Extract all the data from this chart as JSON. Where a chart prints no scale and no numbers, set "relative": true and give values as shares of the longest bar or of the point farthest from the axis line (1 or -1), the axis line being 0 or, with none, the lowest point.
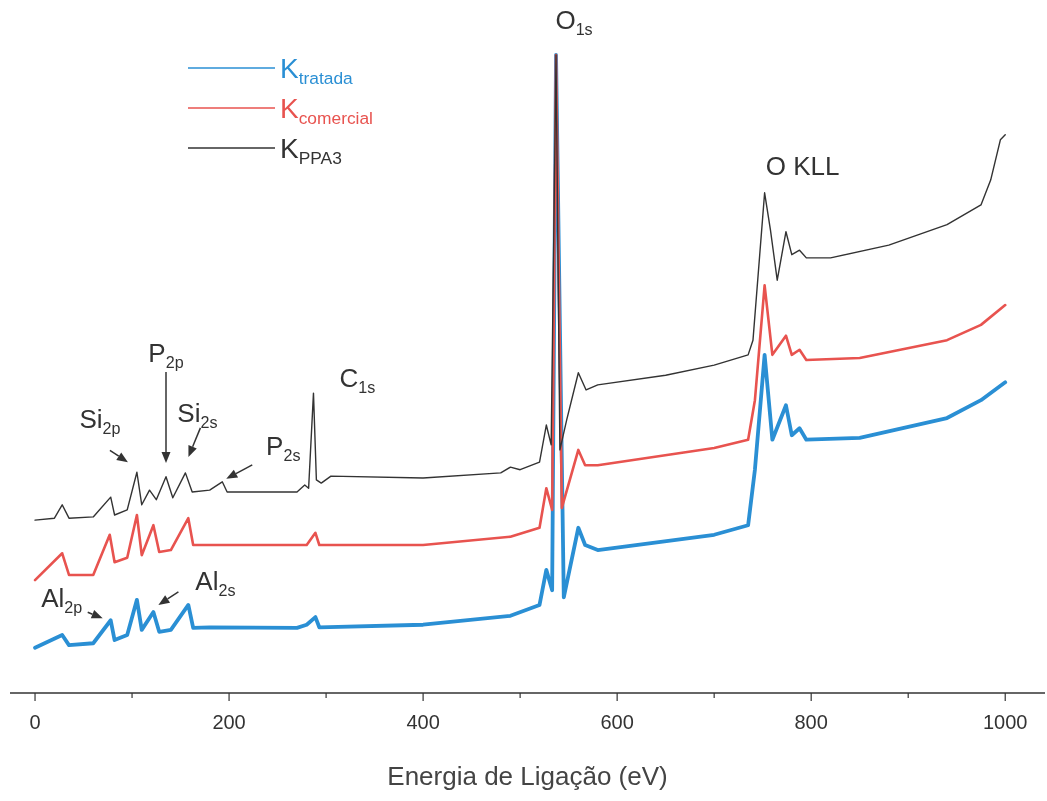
{
  "chart_data": {
    "type": "line",
    "relative": true,
    "xlabel": "Energia de Ligação (eV)",
    "xlim": [
      -25.8,
      1041
    ],
    "xticks": [
      0,
      {
        "value": 100,
        "label": null
      },
      200,
      {
        "value": 300,
        "label": null
      },
      400,
      {
        "value": 500,
        "label": null
      },
      600,
      {
        "value": 700,
        "label": null
      },
      800,
      {
        "value": 900,
        "label": null
      },
      1000
    ],
    "legend": "top left",
    "grid": false,
    "line_style": "solid",
    "marker": "none",
    "series": [
      {
        "name": "K$_{tratada}$",
        "color": "#2a8fd4",
        "x": [
          0,
          28,
          35,
          60,
          78,
          82,
          95,
          105,
          110,
          122,
          128,
          140,
          158,
          163,
          180,
          270,
          280,
          289,
          293,
          400,
          490,
          520,
          527,
          533,
          537,
          545,
          560,
          567,
          580,
          700,
          735,
          742,
          752,
          760,
          774,
          780,
          788,
          795,
          850,
          940,
          975,
          1000
        ],
        "values": [
          0.071,
          0.091,
          0.075,
          0.078,
          0.114,
          0.083,
          0.091,
          0.146,
          0.099,
          0.127,
          0.096,
          0.099,
          0.138,
          0.102,
          0.103,
          0.102,
          0.107,
          0.119,
          0.103,
          0.107,
          0.121,
          0.138,
          0.193,
          0.161,
          1.0,
          0.15,
          0.259,
          0.232,
          0.224,
          0.248,
          0.263,
          0.35,
          0.53,
          0.397,
          0.451,
          0.404,
          0.415,
          0.397,
          0.4,
          0.431,
          0.459,
          0.487
        ]
      },
      {
        "name": "K$_{comercial}$",
        "color": "#e8534f",
        "x": [
          0,
          28,
          35,
          60,
          77,
          82,
          95,
          105,
          110,
          122,
          128,
          140,
          158,
          163,
          180,
          280,
          289,
          293,
          400,
          490,
          520,
          527,
          533,
          537,
          543,
          560,
          567,
          580,
          700,
          735,
          742,
          752,
          760,
          774,
          780,
          788,
          795,
          850,
          940,
          975,
          1000
        ],
        "values": [
          0.177,
          0.219,
          0.185,
          0.185,
          0.248,
          0.205,
          0.212,
          0.279,
          0.216,
          0.263,
          0.221,
          0.224,
          0.274,
          0.232,
          0.232,
          0.232,
          0.251,
          0.232,
          0.232,
          0.245,
          0.259,
          0.321,
          0.287,
          1.0,
          0.29,
          0.381,
          0.357,
          0.357,
          0.384,
          0.397,
          0.459,
          0.639,
          0.53,
          0.56,
          0.53,
          0.538,
          0.522,
          0.525,
          0.553,
          0.577,
          0.608
        ]
      },
      {
        "name": "K$_{PPA3}$",
        "color": "#333333",
        "x": [
          0,
          20,
          28,
          35,
          60,
          78,
          82,
          95,
          105,
          110,
          118,
          125,
          135,
          142,
          155,
          162,
          180,
          193,
          198,
          270,
          278,
          282,
          287,
          290,
          295,
          305,
          400,
          480,
          490,
          500,
          520,
          527,
          532,
          537,
          541,
          548,
          560,
          568,
          580,
          650,
          700,
          735,
          740,
          752,
          758,
          765,
          774,
          780,
          788,
          795,
          820,
          880,
          940,
          975,
          985,
          995,
          1000
        ],
        "values": [
          0.271,
          0.274,
          0.295,
          0.274,
          0.276,
          0.307,
          0.279,
          0.287,
          0.346,
          0.295,
          0.318,
          0.303,
          0.339,
          0.306,
          0.345,
          0.315,
          0.318,
          0.331,
          0.315,
          0.315,
          0.326,
          0.321,
          0.47,
          0.334,
          0.329,
          0.34,
          0.337,
          0.345,
          0.354,
          0.35,
          0.362,
          0.42,
          0.389,
          1.0,
          0.381,
          0.428,
          0.502,
          0.475,
          0.483,
          0.498,
          0.514,
          0.53,
          0.553,
          0.784,
          0.726,
          0.647,
          0.723,
          0.687,
          0.694,
          0.682,
          0.682,
          0.702,
          0.734,
          0.765,
          0.804,
          0.867,
          0.875
        ]
      }
    ],
    "annotations": [
      {
        "text": "O$_{1s}$",
        "x": 537,
        "y": 1.0
      },
      {
        "text": "O KLL",
        "x": 752,
        "y": 0.784
      },
      {
        "text": "C$_{1s}$",
        "x": 287,
        "y": 0.47
      },
      "P$_{2p}$",
      {
        "text": "Si$_{2p}$",
        "x": 105,
        "y": 0.346
      },
      {
        "text": "Si$_{2s}$",
        "x": 155,
        "y": 0.345
      },
      {
        "text": "P$_{2s}$",
        "x": 193,
        "y": 0.331
      },
      {
        "text": "Al$_{2p}$",
        "x": 78,
        "y": 0.114
      },
      {
        "text": "Al$_{2s}$",
        "x": 122,
        "y": 0.127
      }
    ]
  }
}
